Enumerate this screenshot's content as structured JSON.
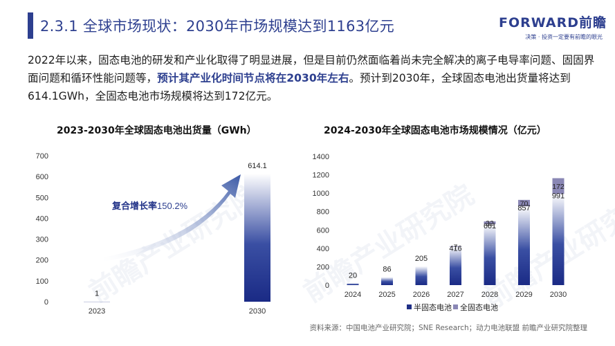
{
  "header": {
    "title": "2.3.1 全球市场现状：2030年市场规模达到1163亿元",
    "logo_text": "FORWARD前瞻",
    "logo_tagline": "决策 · 投资一定要有前瞻的眼光"
  },
  "intro": {
    "part1": "2022年以来，固态电池的研发和产业化取得了明显进展，但是目前仍然面临着尚未完全解决的离子电导率问题、固固界面问题和循环性能问题等，",
    "highlight": "预计其产业化时间节点将在2030年左右",
    "part2": "。预计到2030年，全球固态电池出货量将达到614.1GWh，全固态电池市场规模将达到172亿元。"
  },
  "watermark": "前瞻产业研究院",
  "source": "资料来源：中国电池产业研究院；SNE Research；动力电池联盟 前瞻产业研究院整理",
  "colors": {
    "primary": "#2d3f8f",
    "bar_dark": "#1f2f86",
    "bar_light": "#ffffff",
    "stack_top": "#8a87b5",
    "arrow": "#3b59a6"
  },
  "chart_data": [
    {
      "type": "bar",
      "title": "2023-2030年全球固态电池出货量（GWh）",
      "categories": [
        "2023",
        "2030"
      ],
      "values": [
        1,
        614.1
      ],
      "ylim": [
        0,
        700
      ],
      "yticks": [
        0,
        100,
        200,
        300,
        400,
        500,
        600,
        700
      ],
      "value_labels": [
        "1",
        "614.1"
      ],
      "annotation": {
        "label": "复合增长率",
        "value": "150.2%"
      },
      "grid": false
    },
    {
      "type": "bar",
      "stacked": true,
      "title": "2024-2030年全球固态电池市场规模情况（亿元）",
      "categories": [
        "2024",
        "2025",
        "2026",
        "2027",
        "2028",
        "2029",
        "2030"
      ],
      "series": [
        {
          "name": "半固态电池",
          "values": [
            20,
            86,
            205,
            416,
            661,
            857,
            991
          ]
        },
        {
          "name": "全固态电池",
          "values": [
            0,
            0,
            0,
            7,
            32,
            70,
            172
          ]
        }
      ],
      "ylim": [
        0,
        1400
      ],
      "yticks": [
        0,
        200,
        400,
        600,
        800,
        1000,
        1200,
        1400
      ],
      "legend": "bottom",
      "grid": false
    }
  ]
}
